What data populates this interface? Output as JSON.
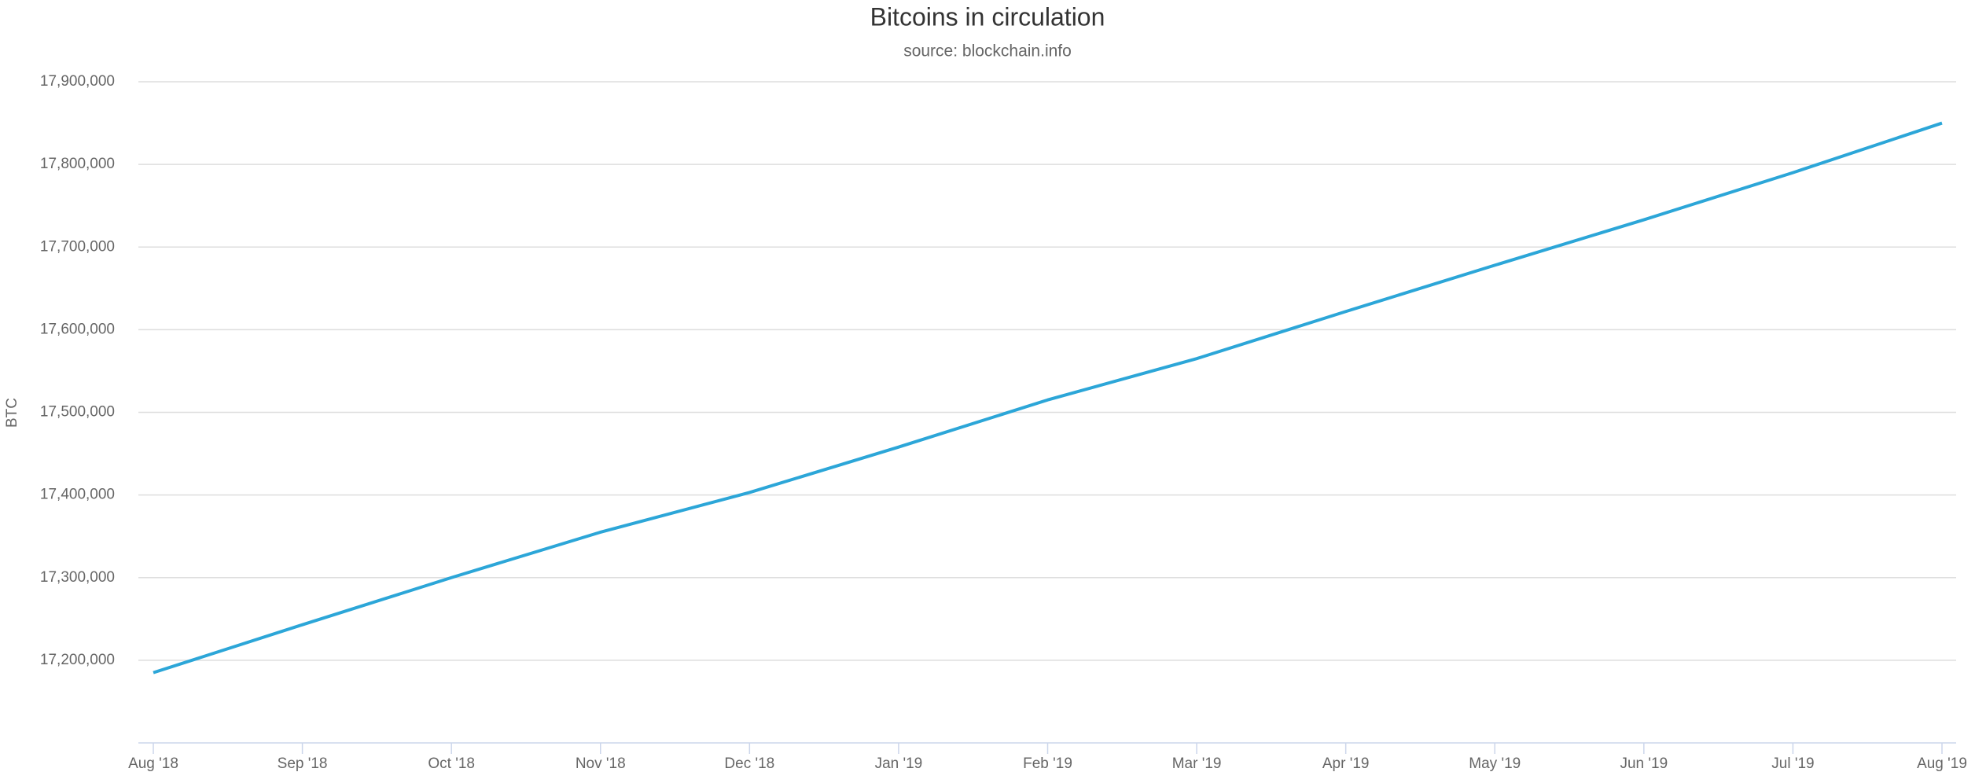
{
  "chart_data": {
    "type": "line",
    "title": "Bitcoins in circulation",
    "subtitle": "source: blockchain.info",
    "y_label": "BTC",
    "categories": [
      "Aug '18",
      "Sep '18",
      "Oct '18",
      "Nov '18",
      "Dec '18",
      "Jan '19",
      "Feb '19",
      "Mar '19",
      "Apr '19",
      "May '19",
      "Jun '19",
      "Jul '19",
      "Aug '19"
    ],
    "series": [
      {
        "name": "BTC",
        "color": "#2ca6d8",
        "values": [
          17185000,
          17243000,
          17300000,
          17355000,
          17403000,
          17458000,
          17515000,
          17565000,
          17622000,
          17678000,
          17733000,
          17790000,
          17850000
        ]
      }
    ],
    "ylim": [
      17100000,
      17900000
    ],
    "yticks": [
      {
        "value": 17200000,
        "label": "17,200,000"
      },
      {
        "value": 17300000,
        "label": "17,300,000"
      },
      {
        "value": 17400000,
        "label": "17,400,000"
      },
      {
        "value": 17500000,
        "label": "17,500,000"
      },
      {
        "value": 17600000,
        "label": "17,600,000"
      },
      {
        "value": 17700000,
        "label": "17,700,000"
      },
      {
        "value": 17800000,
        "label": "17,800,000"
      },
      {
        "value": 17900000,
        "label": "17,900,000"
      }
    ],
    "grid": true
  }
}
